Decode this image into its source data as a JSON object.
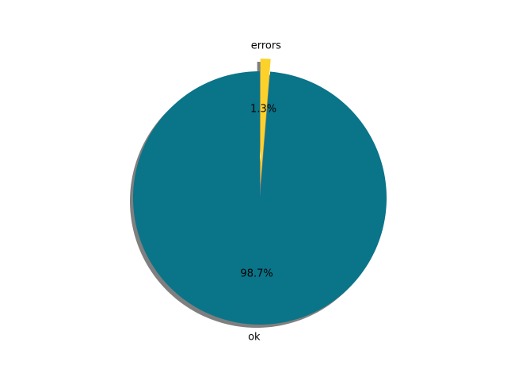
{
  "chart_data": {
    "type": "pie",
    "categories": [
      "ok",
      "errors"
    ],
    "values": [
      98.7,
      1.3
    ],
    "percent_labels": [
      "98.7%",
      "1.3%"
    ],
    "colors": [
      "#0a7489",
      "#fcd22a"
    ],
    "start_angle_deg": 90,
    "direction": "counterclockwise",
    "exploded": [
      "errors"
    ],
    "shadow": true,
    "title": "",
    "legend": "none"
  }
}
